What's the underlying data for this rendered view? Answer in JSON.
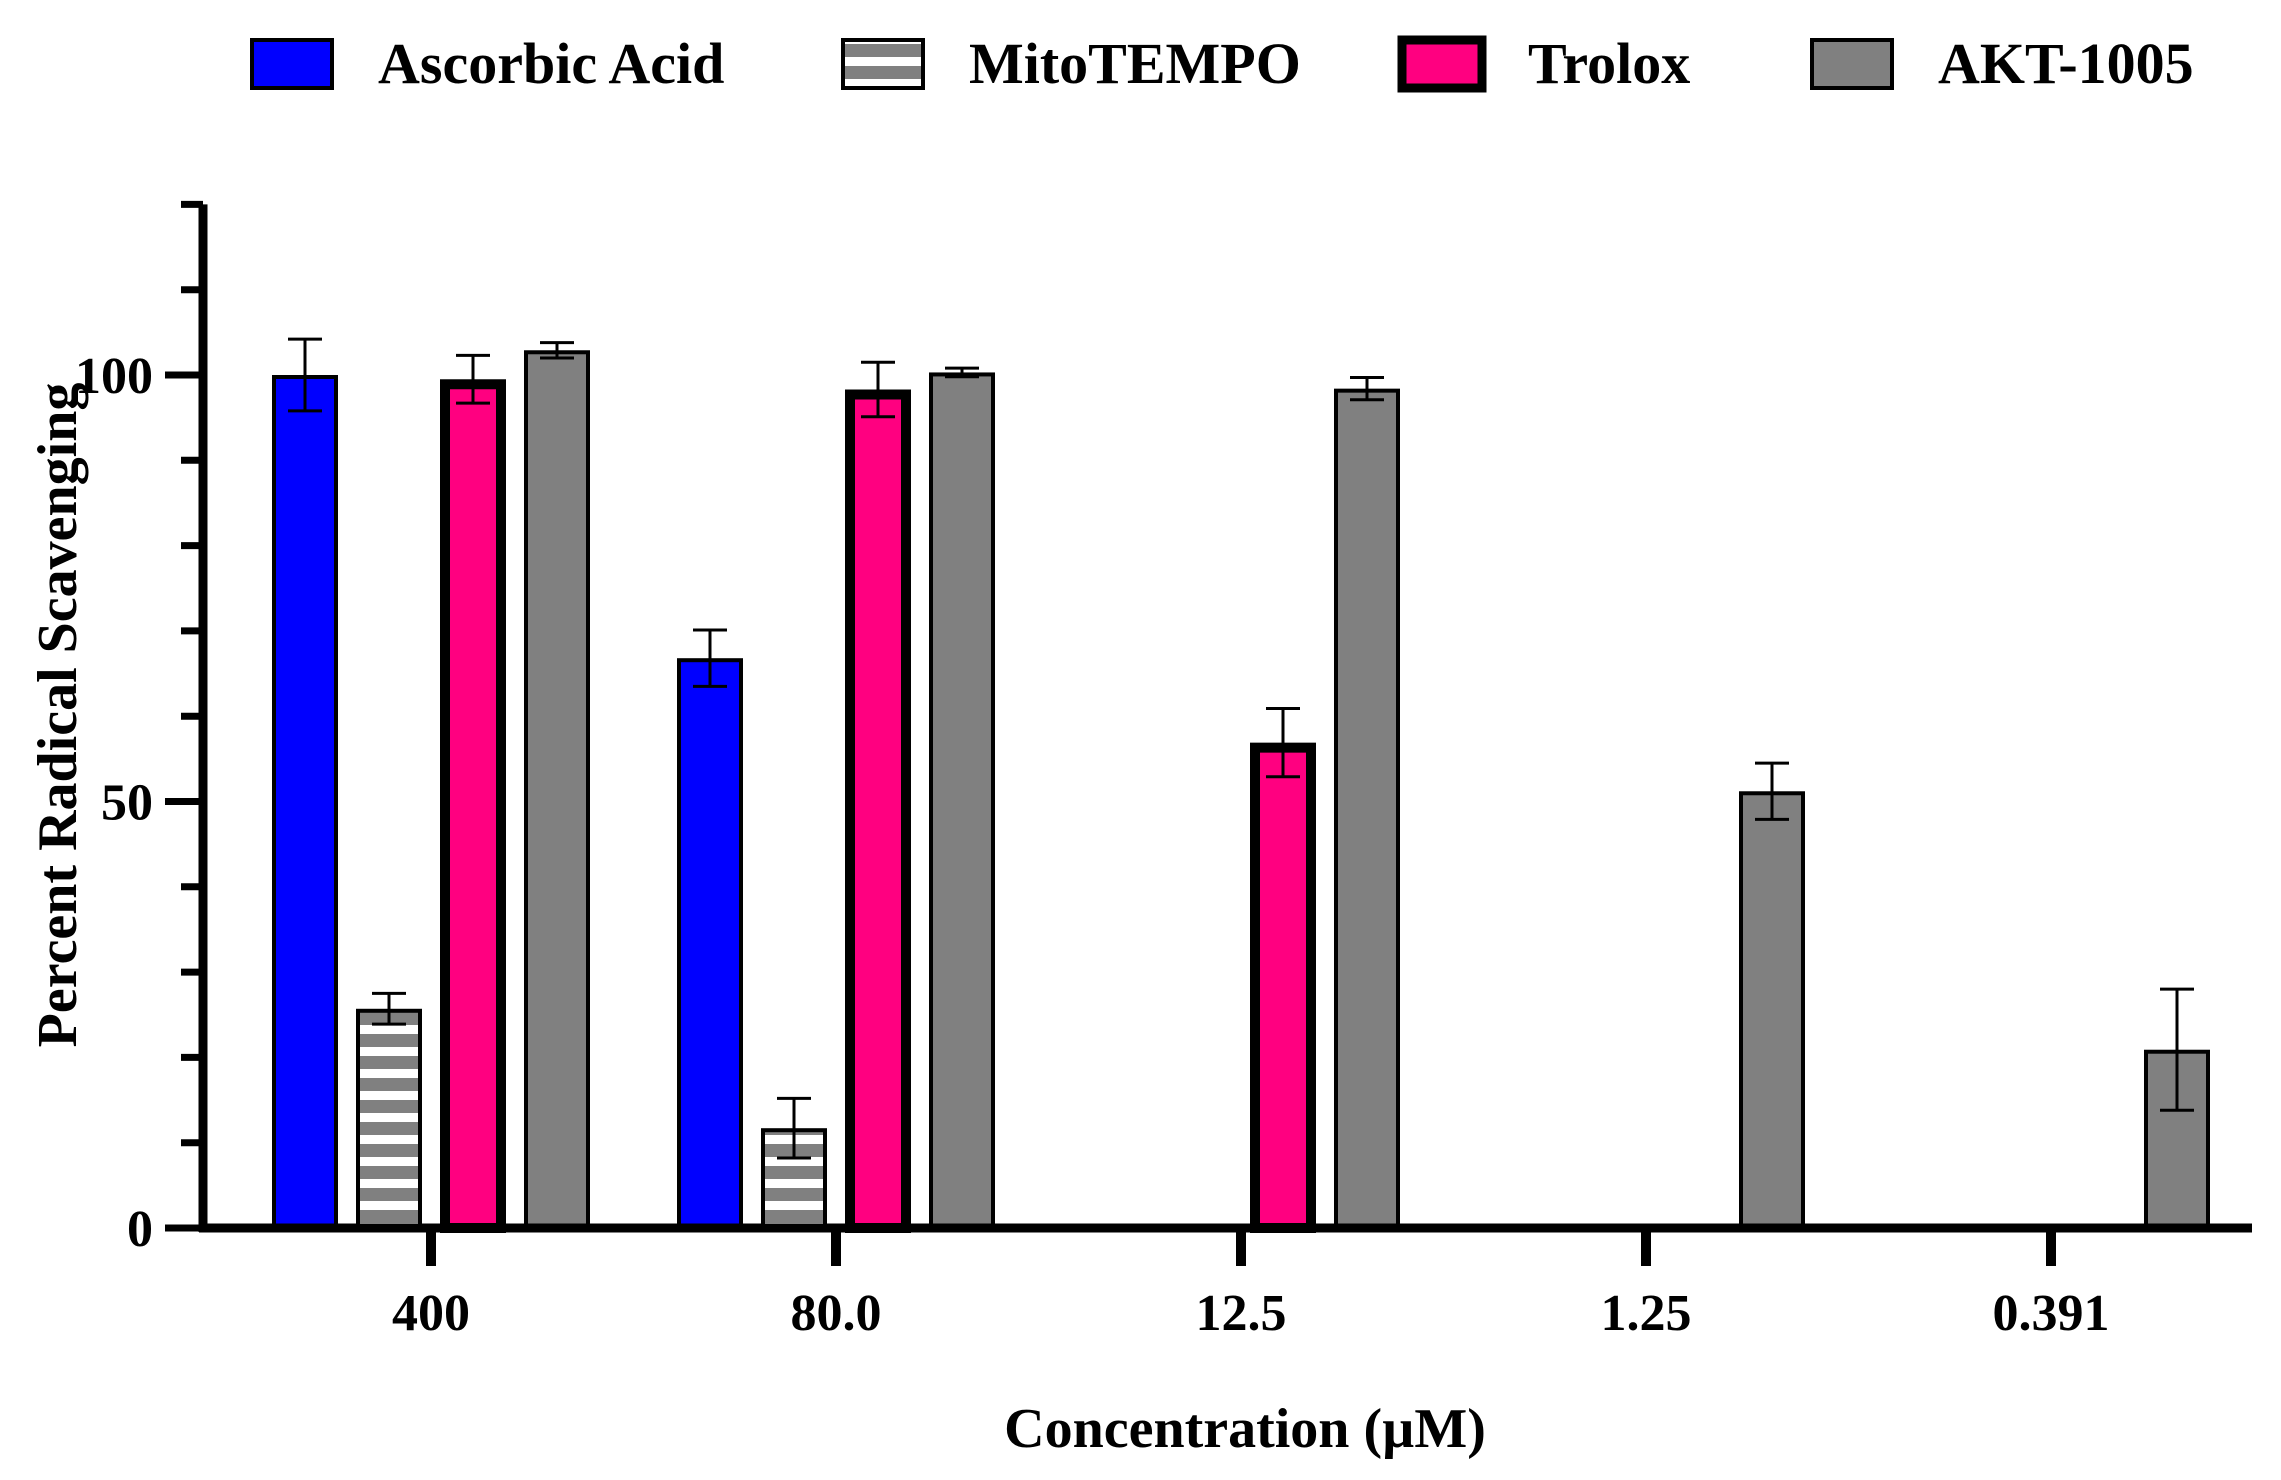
{
  "chart_data": {
    "type": "bar",
    "title": "",
    "xlabel": "Concentration (µM)",
    "ylabel": "Percent Radical Scavenging",
    "categories": [
      "400",
      "80.0",
      "12.5",
      "1.25",
      "0.391"
    ],
    "ylim": [
      0,
      120
    ],
    "yticks_major": [
      0,
      50,
      100
    ],
    "yticks_minor": [
      10,
      20,
      30,
      40,
      60,
      70,
      80,
      90,
      110,
      120
    ],
    "grid": false,
    "legend_position": "top",
    "series": [
      {
        "name": "Ascorbic Acid",
        "color": "#0000ff",
        "pattern": "solid",
        "values": [
          100,
          66.8,
          null,
          null,
          null
        ],
        "errors": [
          4.2,
          3.3,
          null,
          null,
          null
        ]
      },
      {
        "name": "MitoTEMPO",
        "color": "#808080",
        "pattern": "horizontal-stripes",
        "values": [
          25.7,
          11.7,
          null,
          null,
          null
        ],
        "errors": [
          1.8,
          3.5,
          null,
          null,
          null
        ]
      },
      {
        "name": "Trolox",
        "color": "#ff0080",
        "pattern": "solid-thick-border",
        "values": [
          99.5,
          98.3,
          56.9,
          null,
          null
        ],
        "errors": [
          2.8,
          3.2,
          4.0,
          null,
          null
        ]
      },
      {
        "name": "AKT-1005",
        "color": "#808080",
        "pattern": "solid",
        "values": [
          102.9,
          100.3,
          98.4,
          51.2,
          20.9
        ],
        "errors": [
          0.9,
          0.5,
          1.3,
          3.3,
          7.1
        ]
      }
    ]
  }
}
